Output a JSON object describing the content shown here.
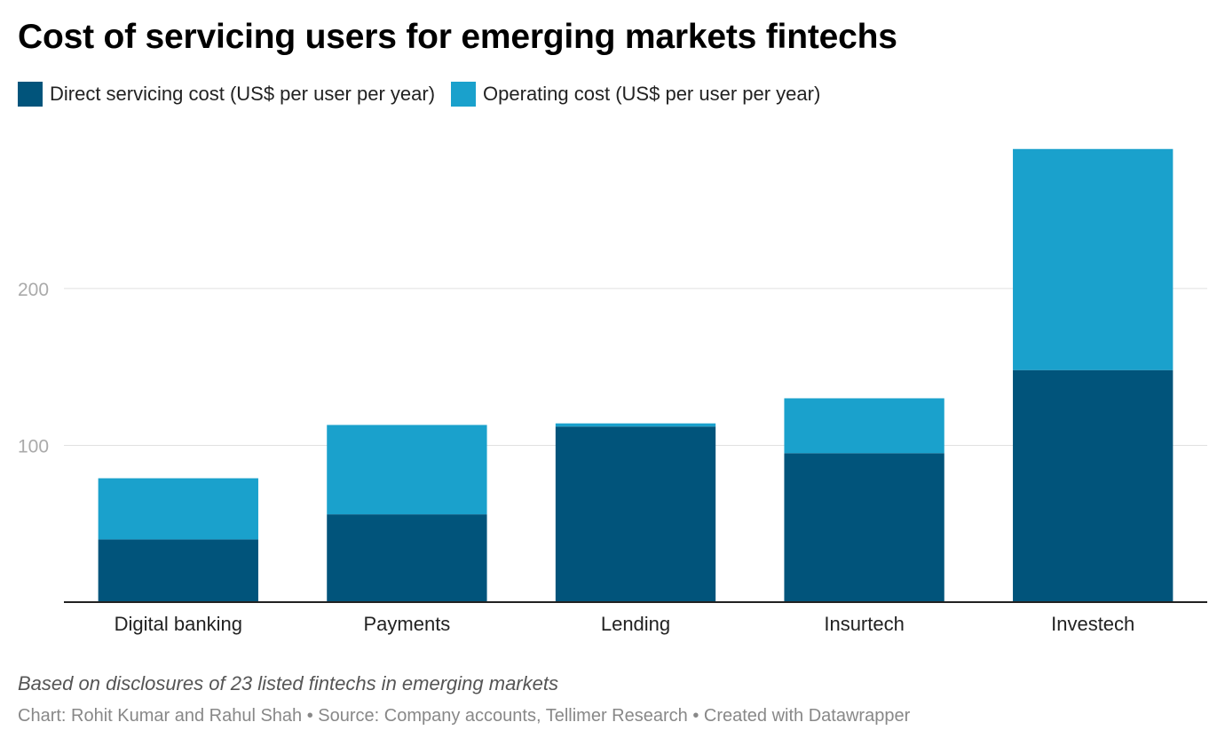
{
  "title": "Cost of servicing users for emerging markets fintechs",
  "notes": "Based on disclosures of 23 listed fintechs in emerging markets",
  "credits": "Chart: Rohit Kumar and Rahul Shah • Source: Company accounts, Tellimer Research • Created with Datawrapper",
  "colors": {
    "direct": "#01547b",
    "operating": "#1aa1cc",
    "grid": "#e1e1e1",
    "axis": "#222222",
    "tick": "#aaaaaa"
  },
  "chart_data": {
    "type": "bar",
    "stacked": true,
    "categories": [
      "Digital banking",
      "Payments",
      "Lending",
      "Insurtech",
      "Investech"
    ],
    "series": [
      {
        "name": "Direct servicing cost (US$ per user per year)",
        "values": [
          40,
          56,
          112,
          95,
          148
        ]
      },
      {
        "name": "Operating cost (US$ per user per year)",
        "values": [
          39,
          57,
          2,
          35,
          141
        ]
      }
    ],
    "yticks": [
      100,
      200
    ],
    "ylim": [
      0,
      290
    ],
    "grid": true,
    "legend": "top-left"
  }
}
